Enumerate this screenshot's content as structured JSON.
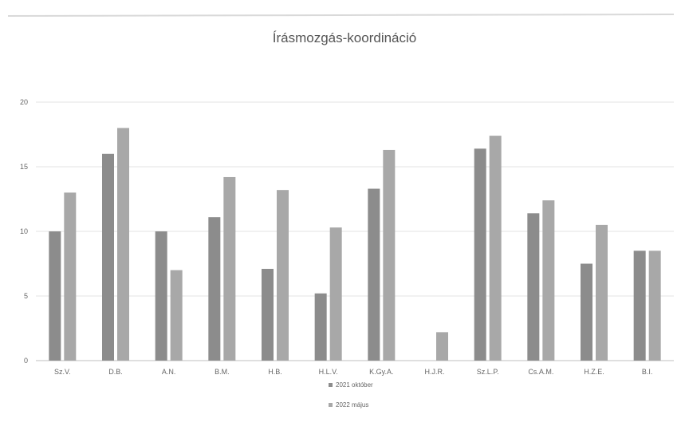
{
  "chart_data": {
    "type": "bar",
    "title": "Írásmozgás-koordináció",
    "xlabel": "",
    "ylabel": "",
    "ylim": [
      0,
      20
    ],
    "yticks": [
      0,
      5,
      10,
      15,
      20
    ],
    "grid": true,
    "legend_position": "bottom",
    "categories": [
      "Sz.V.",
      "D.B.",
      "A.N.",
      "B.M.",
      "H.B.",
      "H.L.V.",
      "K.Gy.A.",
      "H.J.R.",
      "Sz.L.P.",
      "Cs.A.M.",
      "H.Z.E.",
      "B.I."
    ],
    "series": [
      {
        "name": "2021 október",
        "color": "#8c8c8c",
        "values": [
          10,
          16,
          10,
          11.1,
          7.1,
          5.2,
          13.3,
          0,
          16.4,
          11.4,
          7.5,
          8.5
        ]
      },
      {
        "name": "2022 május",
        "color": "#a8a8a8",
        "values": [
          13,
          18,
          7,
          14.2,
          13.2,
          10.3,
          16.3,
          2.2,
          17.4,
          12.4,
          10.5,
          8.5
        ]
      }
    ]
  }
}
